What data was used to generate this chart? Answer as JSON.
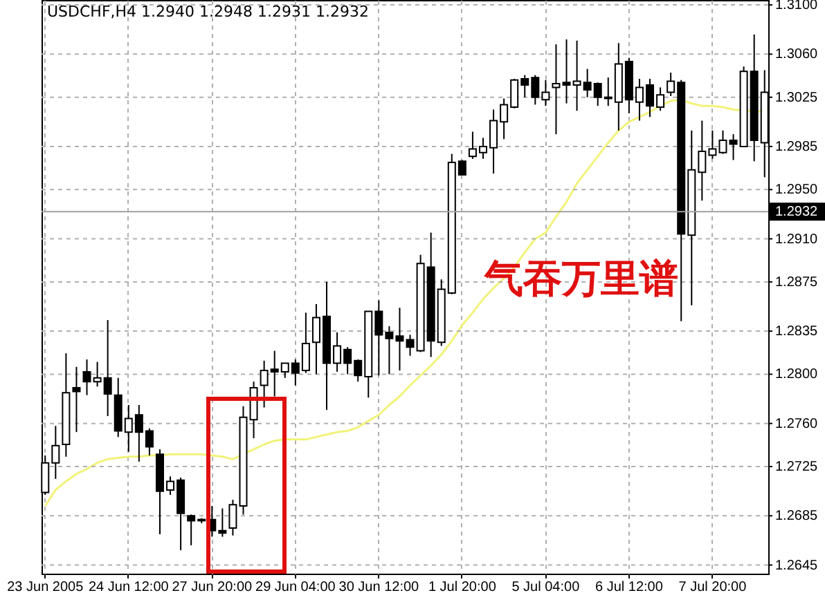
{
  "chart_data": {
    "type": "candlestick",
    "title": "USDCHF,H4  1.2940 1.2948 1.2931 1.2932",
    "categories": [
      "23 Jun 2005",
      null,
      null,
      null,
      null,
      null,
      null,
      null,
      "24 Jun 12:00",
      null,
      null,
      null,
      null,
      null,
      null,
      null,
      "27 Jun 20:00",
      null,
      null,
      null,
      null,
      null,
      null,
      null,
      "29 Jun 04:00",
      null,
      null,
      null,
      null,
      null,
      null,
      null,
      "30 Jun 12:00",
      null,
      null,
      null,
      null,
      null,
      null,
      null,
      "1 Jul 20:00",
      null,
      null,
      null,
      null,
      null,
      null,
      null,
      "5 Jul 04:00",
      null,
      null,
      null,
      null,
      null,
      null,
      null,
      "6 Jul 12:00",
      null,
      null,
      null,
      null,
      null,
      null,
      null,
      "7 Jul 20:00",
      null,
      null,
      null,
      null,
      null
    ],
    "ohlc": [
      [
        1.2704,
        1.2734,
        1.2702,
        1.2728
      ],
      [
        1.2728,
        1.2758,
        1.2715,
        1.2742
      ],
      [
        1.2743,
        1.2817,
        1.2733,
        1.2785
      ],
      [
        1.2789,
        1.2806,
        1.2753,
        1.2786
      ],
      [
        1.2802,
        1.2812,
        1.2783,
        1.2794
      ],
      [
        1.2794,
        1.281,
        1.279,
        1.2797
      ],
      [
        1.2797,
        1.2844,
        1.2766,
        1.2784
      ],
      [
        1.2783,
        1.2797,
        1.2749,
        1.2754
      ],
      [
        1.2753,
        1.2775,
        1.2737,
        1.2764
      ],
      [
        1.2767,
        1.2775,
        1.2729,
        1.2753
      ],
      [
        1.2754,
        1.2756,
        1.2734,
        1.2741
      ],
      [
        1.2735,
        1.2739,
        1.267,
        1.2705
      ],
      [
        1.2706,
        1.2717,
        1.2702,
        1.2713
      ],
      [
        1.2714,
        1.2716,
        1.2657,
        1.2687
      ],
      [
        1.2685,
        1.2686,
        1.2661,
        1.2681
      ],
      [
        1.2682,
        1.2683,
        1.2679,
        1.2681
      ],
      [
        1.2682,
        1.2693,
        1.2668,
        1.2673
      ],
      [
        1.2673,
        1.2691,
        1.2668,
        1.2671
      ],
      [
        1.2675,
        1.2698,
        1.2669,
        1.2694
      ],
      [
        1.2693,
        1.2774,
        1.2686,
        1.2765
      ],
      [
        1.2763,
        1.2794,
        1.2748,
        1.2789
      ],
      [
        1.2791,
        1.2811,
        1.2773,
        1.2803
      ],
      [
        1.2804,
        1.2819,
        1.2782,
        1.2802
      ],
      [
        1.2802,
        1.2809,
        1.2797,
        1.2809
      ],
      [
        1.2809,
        1.2812,
        1.2791,
        1.2801
      ],
      [
        1.2803,
        1.285,
        1.2801,
        1.2825
      ],
      [
        1.2826,
        1.2857,
        1.28,
        1.2846
      ],
      [
        1.2847,
        1.2875,
        1.2771,
        1.2809
      ],
      [
        1.2809,
        1.2834,
        1.2802,
        1.2823
      ],
      [
        1.282,
        1.2822,
        1.28,
        1.2809
      ],
      [
        1.2811,
        1.2812,
        1.2794,
        1.2799
      ],
      [
        1.2798,
        1.2851,
        1.2781,
        1.2851
      ],
      [
        1.2851,
        1.286,
        1.2799,
        1.2832
      ],
      [
        1.2834,
        1.2839,
        1.28,
        1.2829
      ],
      [
        1.2831,
        1.2854,
        1.2803,
        1.2827
      ],
      [
        1.2828,
        1.2832,
        1.2815,
        1.2822
      ],
      [
        1.2819,
        1.2897,
        1.2818,
        1.289
      ],
      [
        1.2887,
        1.2915,
        1.2814,
        1.2827
      ],
      [
        1.2826,
        1.2877,
        1.2823,
        1.2869
      ],
      [
        1.2866,
        1.2979,
        1.2865,
        1.2972
      ],
      [
        1.2973,
        1.2974,
        1.2962,
        1.2962
      ],
      [
        1.2977,
        1.2997,
        1.2975,
        1.2983
      ],
      [
        1.298,
        1.2992,
        1.2975,
        1.2985
      ],
      [
        1.2984,
        1.3015,
        1.2963,
        1.3006
      ],
      [
        1.3005,
        1.3024,
        1.2991,
        1.3019
      ],
      [
        1.3017,
        1.304,
        1.3016,
        1.3039
      ],
      [
        1.304,
        1.3043,
        1.3025,
        1.3035
      ],
      [
        1.3041,
        1.3043,
        1.3019,
        1.3025
      ],
      [
        1.3023,
        1.3039,
        1.3018,
        1.3029
      ],
      [
        1.3033,
        1.3068,
        1.2995,
        1.3036
      ],
      [
        1.3037,
        1.3072,
        1.302,
        1.3035
      ],
      [
        1.3035,
        1.3071,
        1.3014,
        1.3038
      ],
      [
        1.3037,
        1.3048,
        1.3025,
        1.3031
      ],
      [
        1.3036,
        1.3037,
        1.3018,
        1.3025
      ],
      [
        1.3025,
        1.3041,
        1.3018,
        1.3024
      ],
      [
        1.3021,
        1.3069,
        1.2998,
        1.3052
      ],
      [
        1.3054,
        1.3057,
        1.3012,
        1.3023
      ],
      [
        1.3021,
        1.304,
        1.3006,
        1.3033
      ],
      [
        1.3035,
        1.304,
        1.3009,
        1.3018
      ],
      [
        1.3017,
        1.3033,
        1.3014,
        1.3027
      ],
      [
        1.3029,
        1.3045,
        1.3026,
        1.3038
      ],
      [
        1.3037,
        1.3039,
        1.2843,
        1.2914
      ],
      [
        1.2913,
        1.2998,
        1.2856,
        1.2966
      ],
      [
        1.2964,
        1.3006,
        1.2941,
        1.2981
      ],
      [
        1.2978,
        1.2998,
        1.2975,
        1.2983
      ],
      [
        1.298,
        1.2998,
        1.2979,
        1.299
      ],
      [
        1.299,
        1.2995,
        1.2974,
        1.2987
      ],
      [
        1.2985,
        1.305,
        1.2985,
        1.3046
      ],
      [
        1.3046,
        1.3076,
        1.2973,
        1.299
      ],
      [
        1.2988,
        1.3047,
        1.296,
        1.3029
      ]
    ],
    "series": [
      {
        "type": "line",
        "color": "#f2f27a",
        "values": [
          1.2693,
          1.2706,
          1.2713,
          1.2719,
          1.2723,
          1.2728,
          1.2731,
          1.2732,
          1.2733,
          1.2733,
          1.2734,
          1.2734,
          1.2735,
          1.2735,
          1.2735,
          1.2735,
          1.2734,
          1.2733,
          1.2731,
          1.2735,
          1.2739,
          1.2743,
          1.2746,
          1.2747,
          1.2747,
          1.2747,
          1.2749,
          1.2751,
          1.2753,
          1.2754,
          1.2757,
          1.2762,
          1.2767,
          1.2775,
          1.2782,
          1.2791,
          1.2799,
          1.2807,
          1.2816,
          1.2827,
          1.284,
          1.285,
          1.2861,
          1.287,
          1.2878,
          1.2887,
          1.2899,
          1.291,
          1.2915,
          1.2928,
          1.294,
          1.2955,
          1.2966,
          1.2977,
          1.2988,
          1.2998,
          1.3005,
          1.3009,
          1.3013,
          1.3018,
          1.3022,
          1.3023,
          1.302,
          1.3018,
          1.3018,
          1.3017,
          1.3015,
          1.3014,
          1.3014,
          1.3013
        ]
      }
    ],
    "ylim": [
      1.2638,
      1.3104
    ],
    "yticks": [
      1.2645,
      1.2685,
      1.2725,
      {
        "value": 1.276,
        "label": "1.2760"
      },
      {
        "value": 1.28,
        "label": "1.2800"
      },
      1.2835,
      1.2875,
      {
        "value": 1.291,
        "label": "1.2910"
      },
      {
        "value": 1.295,
        "label": "1.2950"
      },
      1.2985,
      1.3025,
      {
        "value": 1.306,
        "label": "1.3060"
      },
      {
        "value": 1.31,
        "label": "1.3100"
      }
    ],
    "ref_lines": [
      {
        "axis": "y",
        "value": 1.2932,
        "label": "1.2932",
        "color": "#a0a0a0"
      }
    ],
    "annotations": [
      "气吞万里谱"
    ],
    "grid": true,
    "line_style": "solid",
    "marker": "none"
  }
}
